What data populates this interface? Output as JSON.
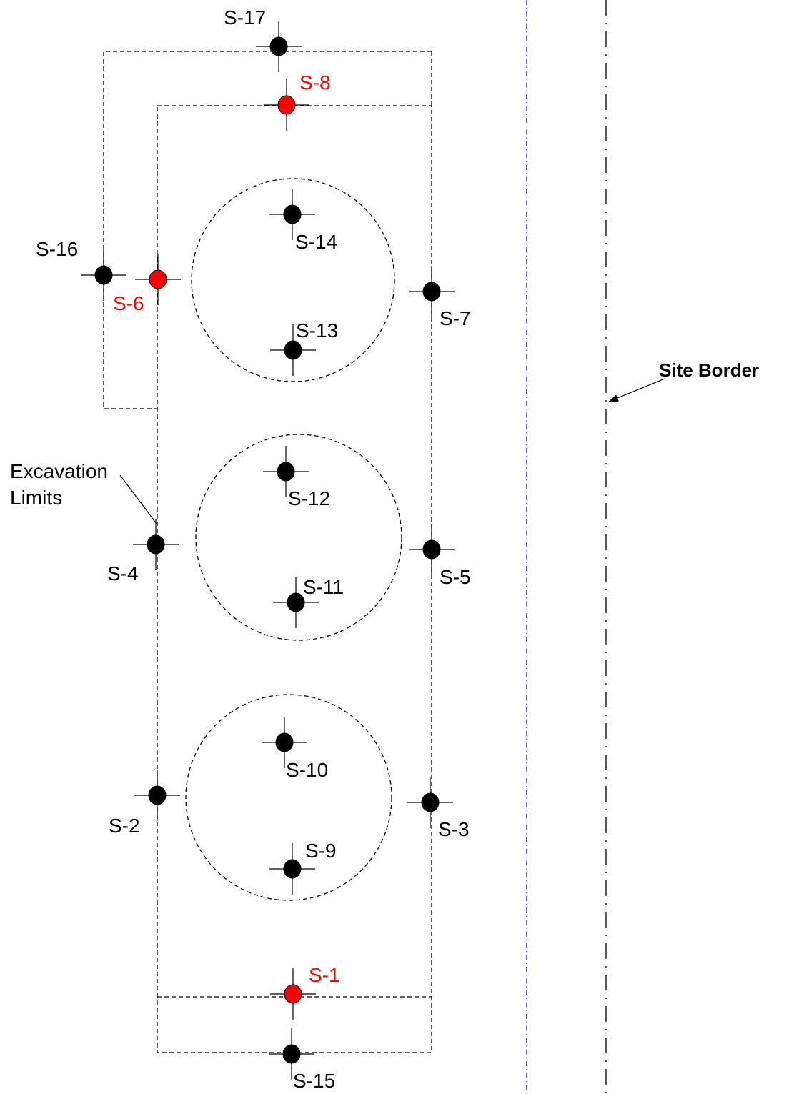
{
  "labels": {
    "site_border": "Site Border",
    "excavation_line1": "Excavation",
    "excavation_line2": "Limits"
  },
  "colors": {
    "sample_default": "#000000",
    "sample_highlight": "#ff0000",
    "label_default": "#000000",
    "label_highlight": "#ff0000",
    "blue_line": "#1a1aa0"
  },
  "samples": [
    {
      "id": "S-1",
      "highlight": true
    },
    {
      "id": "S-2",
      "highlight": false
    },
    {
      "id": "S-3",
      "highlight": false
    },
    {
      "id": "S-4",
      "highlight": false
    },
    {
      "id": "S-5",
      "highlight": false
    },
    {
      "id": "S-6",
      "highlight": true
    },
    {
      "id": "S-7",
      "highlight": false
    },
    {
      "id": "S-8",
      "highlight": true
    },
    {
      "id": "S-9",
      "highlight": false
    },
    {
      "id": "S-10",
      "highlight": false
    },
    {
      "id": "S-11",
      "highlight": false
    },
    {
      "id": "S-12",
      "highlight": false
    },
    {
      "id": "S-13",
      "highlight": false
    },
    {
      "id": "S-14",
      "highlight": false
    },
    {
      "id": "S-15",
      "highlight": false
    },
    {
      "id": "S-16",
      "highlight": false
    },
    {
      "id": "S-17",
      "highlight": false
    }
  ]
}
